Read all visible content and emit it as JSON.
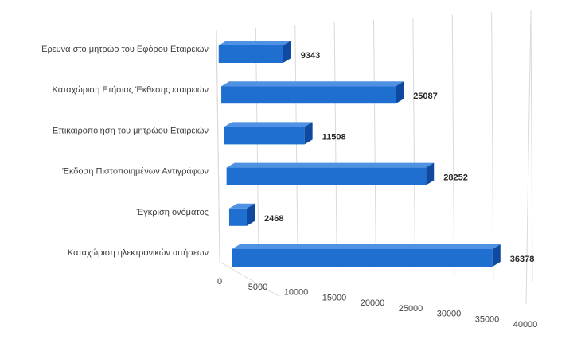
{
  "chart_data": {
    "type": "bar",
    "orientation": "horizontal",
    "style": "3d",
    "title": "",
    "xlabel": "",
    "ylabel": "",
    "categories": [
      "Έρευνα στο μητρώο του Εφόρου Εταιρειών",
      "Καταχώριση  Ετήσιας Έκθεσης  εταιρειών",
      "Επικαιροποίηση του μητρώου Εταιρειών",
      "Έκδοση Πιστοποιημένων Αντιγράφων",
      "Έγκριση  ονόματος",
      "Καταχώριση  ηλεκτρονικών αιτήσεων"
    ],
    "values": [
      9343,
      25087,
      11508,
      28252,
      2468,
      36378
    ],
    "data_labels": [
      "9343",
      "25087",
      "11508",
      "28252",
      "2468",
      "36378"
    ],
    "xlim": [
      0,
      40000
    ],
    "x_ticks": [
      "0",
      "5000",
      "10000",
      "15000",
      "20000",
      "25000",
      "30000",
      "35000",
      "40000"
    ],
    "grid": true,
    "legend": "none",
    "colors": {
      "bar_front": "#1f6fd1",
      "bar_top": "#4f92e3",
      "bar_side": "#0f4aa0",
      "grid": "#d9d9d9"
    }
  }
}
